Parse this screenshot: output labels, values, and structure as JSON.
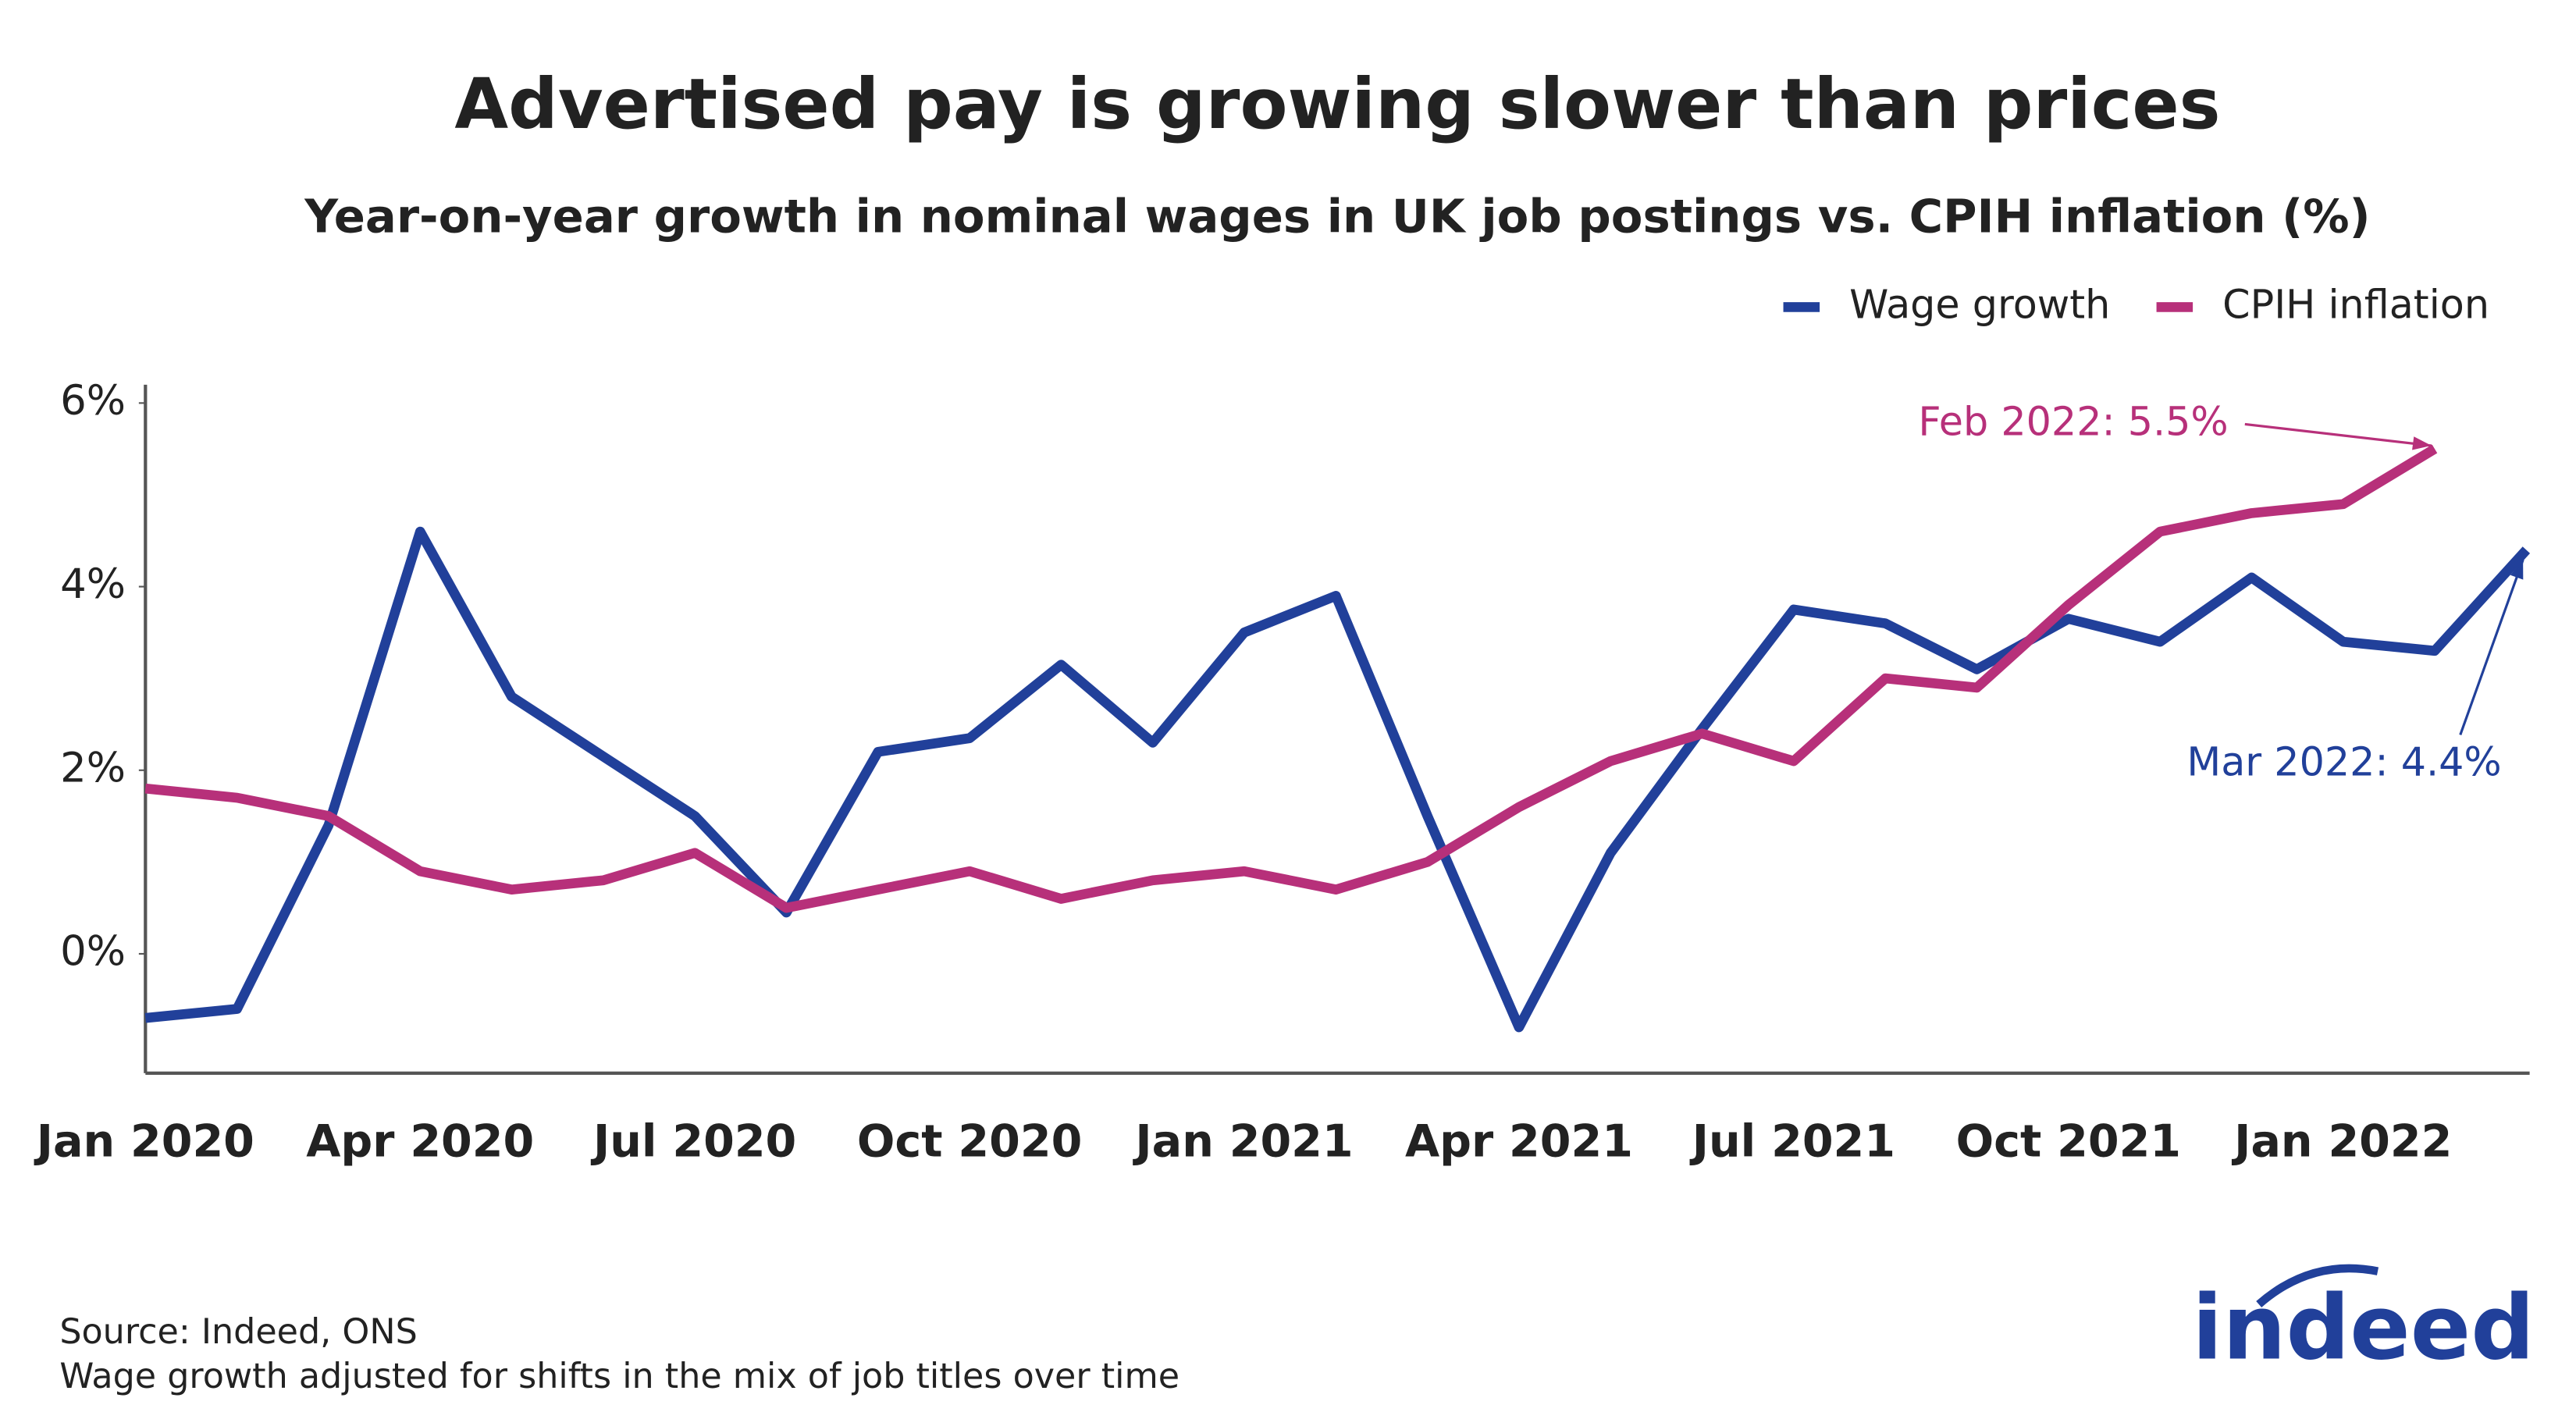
{
  "chart_data": {
    "type": "line",
    "title": "Advertised pay is growing slower than prices",
    "subtitle": "Year-on-year growth in nominal wages in UK job postings vs. CPIH inflation (%)",
    "categories": [
      "Jan 2020",
      null,
      null,
      "Apr 2020",
      null,
      null,
      "Jul 2020",
      null,
      null,
      "Oct 2020",
      null,
      null,
      "Jan 2021",
      null,
      null,
      "Apr 2021",
      null,
      null,
      "Jul 2021",
      null,
      null,
      "Oct 2021",
      null,
      null,
      "Jan 2022",
      null,
      null
    ],
    "series": [
      {
        "name": "Wage growth",
        "color": "#21409a",
        "values": [
          -0.7,
          -0.6,
          1.4,
          4.6,
          2.8,
          2.15,
          1.5,
          0.45,
          2.2,
          2.35,
          3.15,
          2.3,
          3.5,
          3.9,
          1.5,
          -0.8,
          1.1,
          2.45,
          3.75,
          3.6,
          3.1,
          3.65,
          3.4,
          4.1,
          3.4,
          3.3,
          4.4
        ]
      },
      {
        "name": "CPIH inflation",
        "color": "#b7307a",
        "values": [
          1.8,
          1.7,
          1.5,
          0.9,
          0.7,
          0.8,
          1.1,
          0.5,
          0.7,
          0.9,
          0.6,
          0.8,
          0.9,
          0.7,
          1.0,
          1.6,
          2.1,
          2.4,
          2.1,
          3.0,
          2.9,
          3.8,
          4.6,
          4.8,
          4.9,
          5.5,
          null
        ]
      }
    ],
    "ylim": [
      -1.3,
      6.2
    ],
    "yticks": [
      {
        "value": 0,
        "label": "0%"
      },
      {
        "value": 2,
        "label": "2%"
      },
      {
        "value": 4,
        "label": "4%"
      },
      {
        "value": 6,
        "label": "6%"
      }
    ],
    "grid": false,
    "legend": "top-right",
    "annotations": [
      {
        "text": "Feb 2022: 5.5%",
        "series": 1,
        "index": 25
      },
      {
        "text": "Mar 2022: 4.4%",
        "series": 0,
        "index": 26
      }
    ],
    "source": "Source: Indeed, ONS",
    "note": "Wage growth adjusted for shifts in the mix of job titles over time",
    "logo": "indeed"
  }
}
